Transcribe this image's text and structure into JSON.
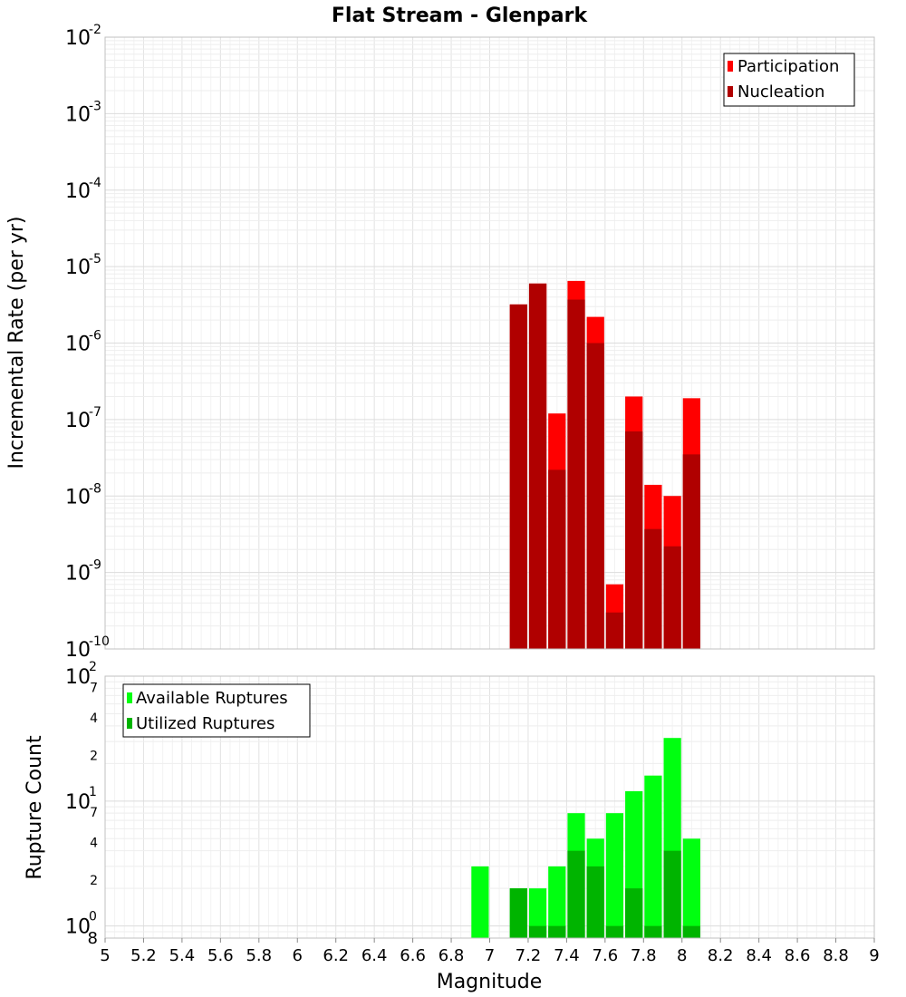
{
  "chart_data": [
    {
      "type": "bar",
      "title": "Flat Stream - Glenpark",
      "xlabel": "",
      "ylabel": "Incremental Rate (per yr)",
      "yscale": "log",
      "ylim": [
        1e-10,
        0.01
      ],
      "xlim": [
        5,
        9
      ],
      "grid": true,
      "legend": "top-right",
      "series": [
        {
          "name": "Participation",
          "color": "#ff0000",
          "x": [
            7.15,
            7.25,
            7.35,
            7.45,
            7.55,
            7.75,
            7.85,
            7.95,
            7.65,
            8.05
          ],
          "values": [
            3.2e-06,
            6e-06,
            1.2e-07,
            6.5e-06,
            2.2e-06,
            2e-07,
            1.4e-08,
            1e-08,
            7e-10,
            1.9e-07
          ]
        },
        {
          "name": "Nucleation",
          "color": "#b00000",
          "x": [
            7.15,
            7.25,
            7.35,
            7.45,
            7.55,
            7.65,
            7.75,
            7.85,
            7.95,
            8.05
          ],
          "values": [
            3.2e-06,
            6e-06,
            2.2e-08,
            3.7e-06,
            1e-06,
            3e-10,
            7e-08,
            3.7e-09,
            2.2e-09,
            3.5e-08
          ]
        }
      ],
      "y_ticks": [
        {
          "base": "10",
          "exp": "-2",
          "value": 0.01
        },
        {
          "base": "10",
          "exp": "-3",
          "value": 0.001
        },
        {
          "base": "10",
          "exp": "-4",
          "value": 0.0001
        },
        {
          "base": "10",
          "exp": "-5",
          "value": 1e-05
        },
        {
          "base": "10",
          "exp": "-6",
          "value": 1e-06
        },
        {
          "base": "10",
          "exp": "-7",
          "value": 1e-07
        },
        {
          "base": "10",
          "exp": "-8",
          "value": 1e-08
        },
        {
          "base": "10",
          "exp": "-9",
          "value": 1e-09
        },
        {
          "base": "10",
          "exp": "-10",
          "value": 1e-10
        }
      ]
    },
    {
      "type": "bar",
      "title": "",
      "xlabel": "Magnitude",
      "ylabel": "Rupture Count",
      "yscale": "log",
      "ylim": [
        0.8,
        100
      ],
      "xlim": [
        5,
        9
      ],
      "grid": true,
      "legend": "top-left",
      "series": [
        {
          "name": "Available Ruptures",
          "color": "#00ff10",
          "x": [
            6.95,
            7.15,
            7.25,
            7.35,
            7.45,
            7.55,
            7.65,
            7.75,
            7.85,
            7.95,
            8.05
          ],
          "values": [
            3,
            2,
            2,
            3,
            8,
            5,
            8,
            12,
            16,
            32,
            5
          ]
        },
        {
          "name": "Utilized Ruptures",
          "color": "#00b400",
          "x": [
            7.15,
            7.25,
            7.35,
            7.45,
            7.55,
            7.65,
            7.75,
            7.85,
            7.95,
            8.05
          ],
          "values": [
            2,
            1,
            1,
            4,
            3,
            1,
            2,
            1,
            4,
            1
          ]
        }
      ],
      "y_major_ticks": [
        {
          "base": "10",
          "exp": "2",
          "value": 100
        },
        {
          "base": "10",
          "exp": "1",
          "value": 10
        },
        {
          "base": "10",
          "exp": "0",
          "value": 1
        }
      ],
      "y_minor_ticks": [
        {
          "label": "7",
          "value": 70
        },
        {
          "label": "4",
          "value": 40
        },
        {
          "label": "2",
          "value": 20
        },
        {
          "label": "7",
          "value": 7
        },
        {
          "label": "4",
          "value": 4
        },
        {
          "label": "2",
          "value": 2
        },
        {
          "label": "8",
          "value": 0.8
        }
      ]
    }
  ],
  "x_ticks": [
    "5",
    "5.2",
    "5.4",
    "5.6",
    "5.8",
    "6",
    "6.2",
    "6.4",
    "6.6",
    "6.8",
    "7",
    "7.2",
    "7.4",
    "7.6",
    "7.8",
    "8",
    "8.2",
    "8.4",
    "8.6",
    "8.8",
    "9"
  ]
}
